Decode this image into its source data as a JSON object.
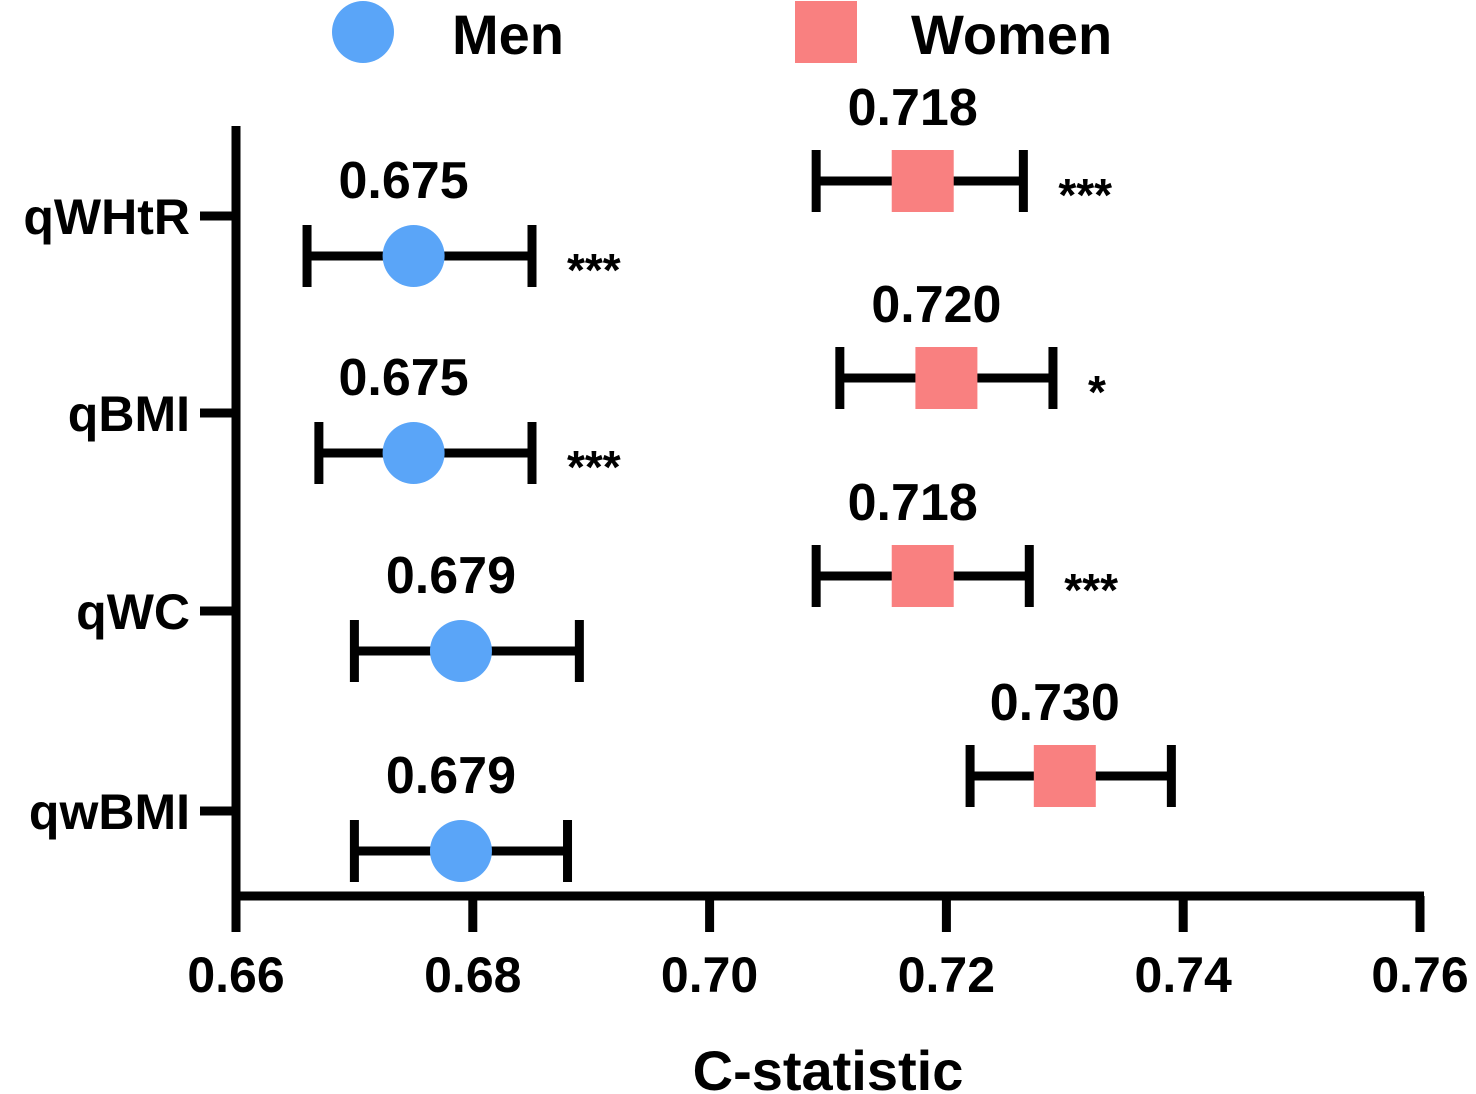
{
  "chart_data": {
    "type": "forest",
    "xlabel": "C-statistic",
    "xlim": [
      0.66,
      0.76
    ],
    "xticks": [
      "0.66",
      "0.68",
      "0.70",
      "0.72",
      "0.74",
      "0.76"
    ],
    "categories": [
      "qWHtR",
      "qBMI",
      "qWC",
      "qwBMI"
    ],
    "series": [
      {
        "name": "Men",
        "marker": "circle",
        "color": "#5aa5f8",
        "points": [
          {
            "category": "qWHtR",
            "value": 0.675,
            "label": "0.675",
            "ci_low": 0.666,
            "ci_high": 0.685,
            "sig": "***"
          },
          {
            "category": "qBMI",
            "value": 0.675,
            "label": "0.675",
            "ci_low": 0.667,
            "ci_high": 0.685,
            "sig": "***"
          },
          {
            "category": "qWC",
            "value": 0.679,
            "label": "0.679",
            "ci_low": 0.67,
            "ci_high": 0.689,
            "sig": ""
          },
          {
            "category": "qwBMI",
            "value": 0.679,
            "label": "0.679",
            "ci_low": 0.67,
            "ci_high": 0.688,
            "sig": ""
          }
        ]
      },
      {
        "name": "Women",
        "marker": "square",
        "color": "#f98080",
        "points": [
          {
            "category": "qWHtR",
            "value": 0.718,
            "label": "0.718",
            "ci_low": 0.709,
            "ci_high": 0.7265,
            "sig": "***"
          },
          {
            "category": "qBMI",
            "value": 0.72,
            "label": "0.720",
            "ci_low": 0.711,
            "ci_high": 0.729,
            "sig": "*"
          },
          {
            "category": "qWC",
            "value": 0.718,
            "label": "0.718",
            "ci_low": 0.709,
            "ci_high": 0.727,
            "sig": "***"
          },
          {
            "category": "qwBMI",
            "value": 0.73,
            "label": "0.730",
            "ci_low": 0.722,
            "ci_high": 0.739,
            "sig": ""
          }
        ]
      }
    ]
  }
}
